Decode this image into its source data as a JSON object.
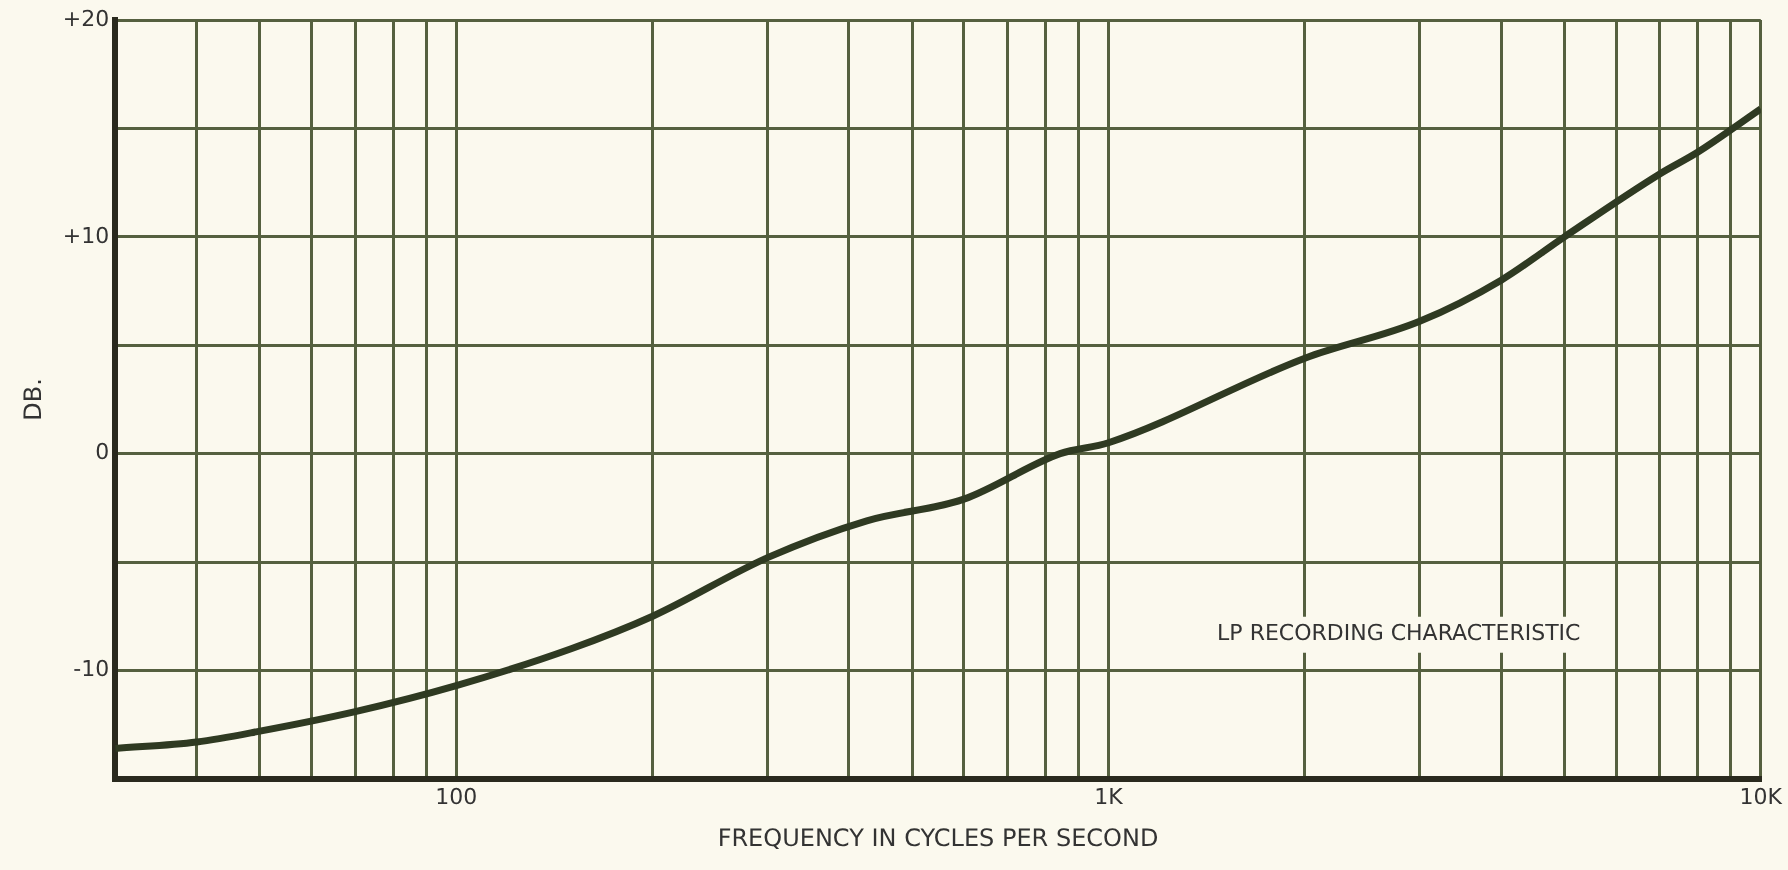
{
  "chart_data": {
    "type": "line",
    "xlabel": "FREQUENCY IN CYCLES PER SECOND",
    "ylabel": "DB.",
    "log": "x",
    "grid": true,
    "marker": "none",
    "line_style": "solid",
    "legend": false,
    "annotations": [
      "LP RECORDING CHARACTERISTIC"
    ],
    "xlim": [
      30,
      10000
    ],
    "xticks": [
      {
        "value": 30,
        "label": null
      },
      {
        "value": 40,
        "label": null
      },
      {
        "value": 50,
        "label": null
      },
      {
        "value": 60,
        "label": null
      },
      {
        "value": 70,
        "label": null
      },
      {
        "value": 80,
        "label": null
      },
      {
        "value": 90,
        "label": null
      },
      {
        "value": 100,
        "label": "100"
      },
      {
        "value": 200,
        "label": null
      },
      {
        "value": 300,
        "label": null
      },
      {
        "value": 400,
        "label": null
      },
      {
        "value": 500,
        "label": null
      },
      {
        "value": 600,
        "label": null
      },
      {
        "value": 700,
        "label": null
      },
      {
        "value": 800,
        "label": null
      },
      {
        "value": 900,
        "label": null
      },
      {
        "value": 1000,
        "label": "1K"
      },
      {
        "value": 2000,
        "label": null
      },
      {
        "value": 3000,
        "label": null
      },
      {
        "value": 4000,
        "label": null
      },
      {
        "value": 5000,
        "label": null
      },
      {
        "value": 6000,
        "label": null
      },
      {
        "value": 7000,
        "label": null
      },
      {
        "value": 8000,
        "label": null
      },
      {
        "value": 9000,
        "label": null
      },
      {
        "value": 10000,
        "label": "10K"
      }
    ],
    "ylim": [
      -15,
      20
    ],
    "yticks": [
      {
        "value": -15,
        "label": null
      },
      {
        "value": -10,
        "label": "-10"
      },
      {
        "value": -5,
        "label": null
      },
      {
        "value": 0,
        "label": "0"
      },
      {
        "value": 5,
        "label": null
      },
      {
        "value": 10,
        "label": "+10"
      },
      {
        "value": 15,
        "label": null
      },
      {
        "value": 20,
        "label": "+20"
      }
    ],
    "x": [
      30,
      40,
      50,
      70,
      100,
      150,
      200,
      300,
      426,
      600,
      843,
      1000,
      2000,
      3000,
      4000,
      5000,
      7000,
      8000,
      10000
    ],
    "series": [
      {
        "color": "#2f3a22",
        "values": [
          -13.6,
          -13.3,
          -12.8,
          -11.9,
          -10.7,
          -9.0,
          -7.5,
          -4.8,
          -3.1,
          -2.1,
          0,
          0.5,
          4.4,
          6.1,
          8.0,
          10.0,
          12.9,
          13.9,
          15.9
        ]
      }
    ]
  }
}
